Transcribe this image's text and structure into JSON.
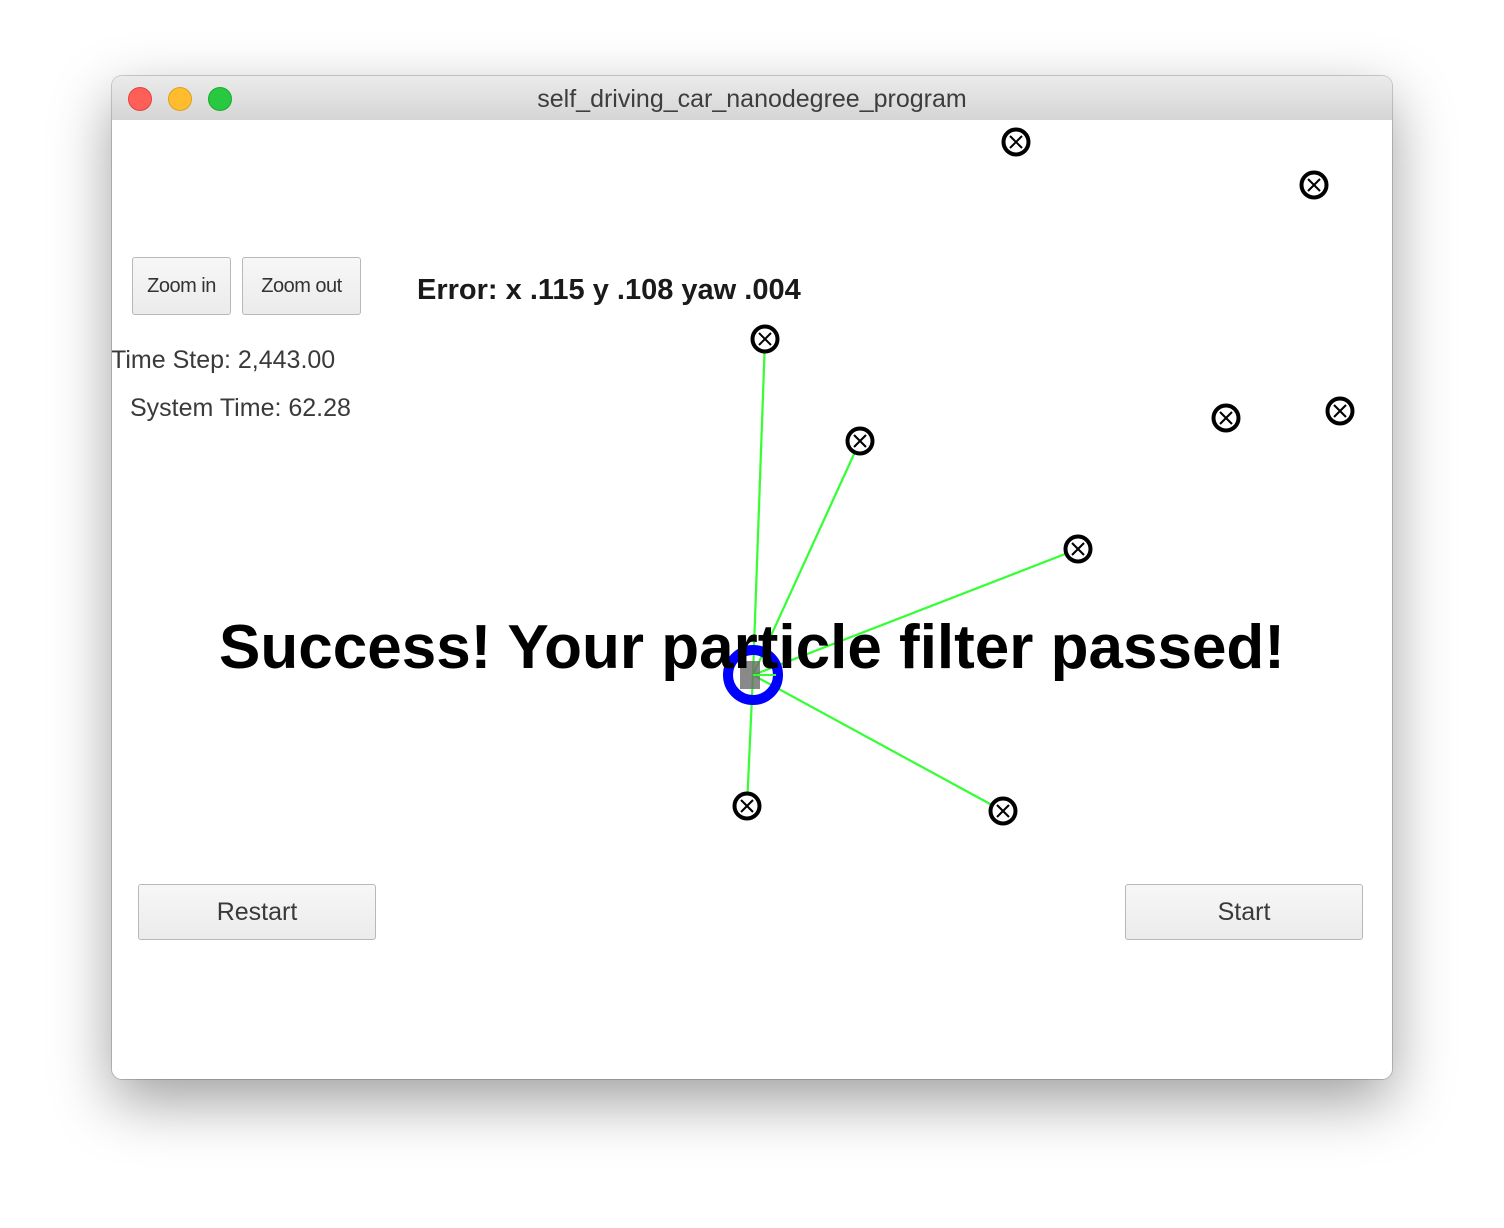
{
  "window": {
    "title": "self_driving_car_nanodegree_program"
  },
  "controls": {
    "zoom_in_label": "Zoom in",
    "zoom_out_label": "Zoom out",
    "restart_label": "Restart",
    "start_label": "Start"
  },
  "stats": {
    "time_step": "Time Step: 2,443.00",
    "system_time": "System Time: 62.28"
  },
  "error": {
    "text": "Error: x .115 y .108 yaw .004"
  },
  "status": {
    "message": "Success! Your particle filter passed!"
  },
  "colors": {
    "vehicle": "#0000ff",
    "observation_line": "#33ff33",
    "landmark": "#000000"
  },
  "icons": {
    "landmark": "landmark-marker-icon",
    "vehicle": "vehicle-icon"
  }
}
